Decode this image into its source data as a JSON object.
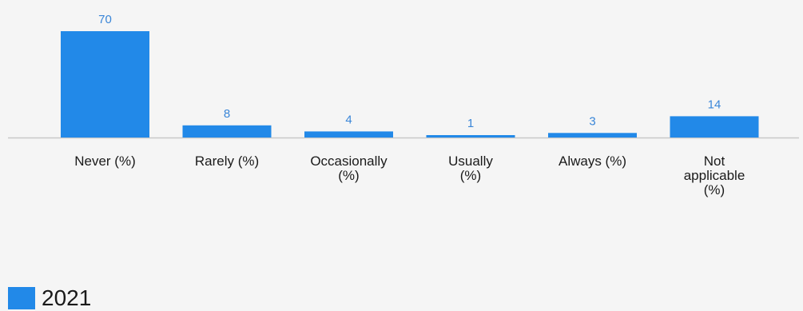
{
  "chart_data": {
    "type": "bar",
    "categories": [
      [
        "Never (%)"
      ],
      [
        "Rarely (%)"
      ],
      [
        "Occasionally",
        "(%)"
      ],
      [
        "Usually",
        "(%)"
      ],
      [
        "Always (%)"
      ],
      [
        "Not",
        "applicable",
        "(%)"
      ]
    ],
    "series": [
      {
        "name": "2021",
        "values": [
          70,
          8,
          4,
          1,
          3,
          14
        ],
        "color": "#2289e8"
      }
    ],
    "value_label_color": "#3a86d8",
    "axis_color": "#c8c8c8",
    "legend_position": "bottom-left"
  },
  "legend": {
    "label": "2021",
    "color": "#2289e8"
  }
}
